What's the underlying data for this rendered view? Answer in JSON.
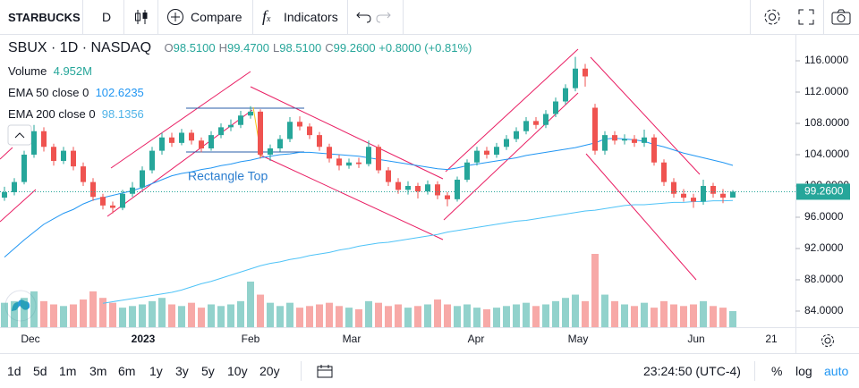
{
  "toolbar": {
    "symbol": "STARBUCKS",
    "interval": "D",
    "compare": "Compare",
    "indicators": "Indicators"
  },
  "legend": {
    "symbol": "SBUX",
    "interval": "1D",
    "exchange": "NASDAQ",
    "ohlc": [
      {
        "key": "O",
        "value": "98.5100"
      },
      {
        "key": "H",
        "value": "99.4700"
      },
      {
        "key": "L",
        "value": "98.5100"
      },
      {
        "key": "C",
        "value": "99.2600"
      }
    ],
    "change": "+0.8000 (+0.81%)"
  },
  "chart_data": {
    "type": "candlestick",
    "up_color": "#26a69a",
    "down_color": "#ef5350",
    "candles": [
      [
        98.5,
        99.9,
        98.1,
        99.2
      ],
      [
        99.2,
        101,
        98.8,
        100.5
      ],
      [
        100.5,
        104.5,
        100.2,
        104
      ],
      [
        104,
        107.8,
        103.6,
        107
      ],
      [
        107,
        107.5,
        104.4,
        105
      ],
      [
        105,
        105.4,
        102.6,
        103.2
      ],
      [
        103.2,
        105,
        102.8,
        104.5
      ],
      [
        104.5,
        105,
        102,
        102.5
      ],
      [
        102.5,
        103,
        100,
        100.5
      ],
      [
        100.5,
        101,
        98.1,
        98.6
      ],
      [
        98.6,
        99,
        97,
        97.5
      ],
      [
        97.5,
        98,
        96.5,
        97.2
      ],
      [
        97.2,
        99.5,
        96.9,
        99
      ],
      [
        99,
        100.5,
        98.6,
        99.8
      ],
      [
        99.8,
        102.5,
        99.5,
        102
      ],
      [
        102,
        105,
        101.6,
        104.5
      ],
      [
        104.5,
        106.8,
        104,
        106.2
      ],
      [
        106.2,
        106.8,
        105,
        105.5
      ],
      [
        105.5,
        107.3,
        105.2,
        106.8
      ],
      [
        106.8,
        107.2,
        105.3,
        105.8
      ],
      [
        105.8,
        106.2,
        104.3,
        104.8
      ],
      [
        104.8,
        107,
        104.5,
        106.5
      ],
      [
        106.5,
        108,
        106.1,
        107.5
      ],
      [
        107.5,
        108.5,
        107,
        107.8
      ],
      [
        107.8,
        109.6,
        107.4,
        109
      ],
      [
        109,
        110.2,
        108.6,
        109.5
      ],
      [
        109.5,
        109.8,
        103.5,
        104
      ],
      [
        104,
        105.3,
        103.2,
        104.8
      ],
      [
        104.8,
        106.5,
        104.4,
        106
      ],
      [
        106,
        108.8,
        105.6,
        108.2
      ],
      [
        108.2,
        108.9,
        107.1,
        107.6
      ],
      [
        107.6,
        108,
        106,
        106.5
      ],
      [
        106.5,
        106.9,
        104.5,
        105
      ],
      [
        105,
        105.4,
        103,
        103.5
      ],
      [
        103.5,
        104,
        102,
        102.6
      ],
      [
        102.6,
        103.5,
        102.2,
        103
      ],
      [
        103,
        103.6,
        102.3,
        102.8
      ],
      [
        102.8,
        105.8,
        102.5,
        105
      ],
      [
        105,
        105.3,
        101.6,
        102
      ],
      [
        102,
        102.4,
        100,
        100.5
      ],
      [
        100.5,
        101,
        99,
        99.5
      ],
      [
        99.5,
        100.6,
        98.9,
        100
      ],
      [
        100,
        100.4,
        98.4,
        99.3
      ],
      [
        99.3,
        100.7,
        98.9,
        100.2
      ],
      [
        100.2,
        100.6,
        98.3,
        98.8
      ],
      [
        98.8,
        99.2,
        97.4,
        98.3
      ],
      [
        98.3,
        101.2,
        98,
        100.8
      ],
      [
        100.8,
        103.4,
        100.5,
        103
      ],
      [
        103,
        105,
        102.6,
        104.5
      ],
      [
        104.5,
        105,
        103.5,
        104
      ],
      [
        104,
        105.5,
        103.6,
        105
      ],
      [
        105,
        106.5,
        104.6,
        106
      ],
      [
        106,
        107.5,
        105.6,
        107
      ],
      [
        107,
        108.8,
        106.6,
        108.3
      ],
      [
        108.3,
        108.8,
        107.3,
        107.8
      ],
      [
        107.8,
        109.7,
        107.4,
        109.2
      ],
      [
        109.2,
        111.3,
        108.8,
        110.8
      ],
      [
        110.8,
        113,
        110.4,
        112.5
      ],
      [
        112.5,
        116.5,
        112.1,
        115
      ],
      [
        115,
        115.6,
        112.7,
        114
      ],
      [
        110,
        110.5,
        104,
        104.5
      ],
      [
        104.5,
        107,
        104,
        106.5
      ],
      [
        106.5,
        107,
        105.3,
        105.8
      ],
      [
        105.8,
        106.6,
        105.3,
        106
      ],
      [
        106,
        106.5,
        105,
        105.5
      ],
      [
        105.5,
        107.2,
        105,
        106.2
      ],
      [
        106.2,
        106.6,
        102.6,
        103
      ],
      [
        103,
        103.4,
        100,
        100.5
      ],
      [
        100.5,
        101,
        98.5,
        99
      ],
      [
        99,
        99.6,
        98,
        98.5
      ],
      [
        98.5,
        99,
        97.2,
        98
      ],
      [
        98,
        100.8,
        97.6,
        100
      ],
      [
        100,
        100.4,
        98.5,
        99
      ],
      [
        99,
        99.6,
        97.8,
        98.5
      ],
      [
        98.51,
        99.47,
        98.51,
        99.26
      ]
    ],
    "volume": {
      "name": "Volume",
      "label": "4.952M",
      "values": [
        7.5,
        8,
        9,
        11,
        8,
        7,
        6.5,
        7,
        8.5,
        11,
        9,
        7.5,
        6,
        6.5,
        7,
        8,
        9,
        7,
        6.5,
        7.5,
        6,
        7,
        6.5,
        7,
        8,
        14,
        10,
        7.5,
        6.5,
        7.5,
        6,
        6.5,
        7,
        7.5,
        6.5,
        6,
        5.5,
        8,
        7.5,
        6.5,
        7,
        6,
        6.5,
        7,
        8.5,
        7,
        6.5,
        7,
        6,
        5.5,
        6,
        6.5,
        7,
        7.5,
        6.5,
        7,
        8,
        9,
        10,
        8,
        22.5,
        10,
        8,
        7,
        6.5,
        7.5,
        6,
        8,
        7,
        6.5,
        7,
        8,
        6.5,
        6,
        4.952
      ]
    },
    "series": [
      {
        "name": "EMA 50 close 0",
        "label": "102.6235",
        "color": "#2196f3",
        "values": [
          90.9,
          92.0,
          93.1,
          94.1,
          95.1,
          95.8,
          96.5,
          97.0,
          97.7,
          98.2,
          98.5,
          98.8,
          99.1,
          99.4,
          99.8,
          100.3,
          100.8,
          101.3,
          101.6,
          101.8,
          102.1,
          102.3,
          102.6,
          102.8,
          103.1,
          103.3,
          103.6,
          103.8,
          104.0,
          104.1,
          104.3,
          104.3,
          104.2,
          104.1,
          104.0,
          103.9,
          103.8,
          103.6,
          103.4,
          103.2,
          103.0,
          102.8,
          102.6,
          102.4,
          102.2,
          102.1,
          102.3,
          102.6,
          102.8,
          103.0,
          103.2,
          103.4,
          103.6,
          103.9,
          104.1,
          104.3,
          104.5,
          104.7,
          104.9,
          105.2,
          105.5,
          106.0,
          106.1,
          106.0,
          105.9,
          105.7,
          105.3,
          105.0,
          104.6,
          104.2,
          103.9,
          103.6,
          103.3,
          103.0,
          102.6235
        ]
      },
      {
        "name": "EMA 200 close 0",
        "label": "98.1356",
        "color": "#4fc3f7",
        "values": [
          null,
          null,
          null,
          null,
          null,
          null,
          null,
          null,
          null,
          null,
          85.0,
          85.2,
          85.4,
          85.6,
          85.8,
          86.0,
          86.2,
          86.4,
          86.7,
          87.1,
          87.5,
          87.8,
          88.2,
          88.6,
          89.0,
          89.4,
          89.8,
          90.1,
          90.3,
          90.6,
          90.8,
          91.1,
          91.3,
          91.5,
          91.8,
          92.0,
          92.3,
          92.5,
          92.7,
          92.8,
          93.0,
          93.2,
          93.4,
          93.6,
          93.8,
          94.1,
          94.3,
          94.5,
          94.7,
          94.9,
          95.1,
          95.3,
          95.5,
          95.6,
          95.8,
          96.0,
          96.2,
          96.4,
          96.6,
          96.8,
          96.9,
          97.1,
          97.3,
          97.5,
          97.6,
          97.6,
          97.7,
          97.8,
          97.9,
          97.9,
          98.0,
          98.0,
          98.1,
          98.1,
          98.1356
        ]
      }
    ],
    "ylim": [
      81.94,
      119.2
    ],
    "yticks": [
      {
        "value": 84,
        "label": "84.0000"
      },
      {
        "value": 88,
        "label": "88.0000"
      },
      {
        "value": 92,
        "label": "92.0000"
      },
      {
        "value": 96,
        "label": "96.0000"
      },
      {
        "value": 100,
        "label": "100.0000"
      },
      {
        "value": 104,
        "label": "104.0000"
      },
      {
        "value": 108,
        "label": "108.0000"
      },
      {
        "value": 112,
        "label": "112.0000"
      },
      {
        "value": 116,
        "label": "116.0000"
      }
    ],
    "last_price": {
      "value": 99.26,
      "label": "99.2600"
    },
    "xticks": [
      "Dec",
      "2023",
      "Feb",
      "Mar",
      "Apr",
      "May",
      "Jun",
      "21"
    ],
    "annotation": "Rectangle Top"
  },
  "bottom": {
    "ranges": [
      "1d",
      "5d",
      "1m",
      "3m",
      "6m",
      "1y",
      "3y",
      "5y",
      "10y",
      "20y"
    ],
    "time": "23:24:50 (UTC-4)",
    "percent": "%",
    "log": "log",
    "auto": "auto"
  }
}
